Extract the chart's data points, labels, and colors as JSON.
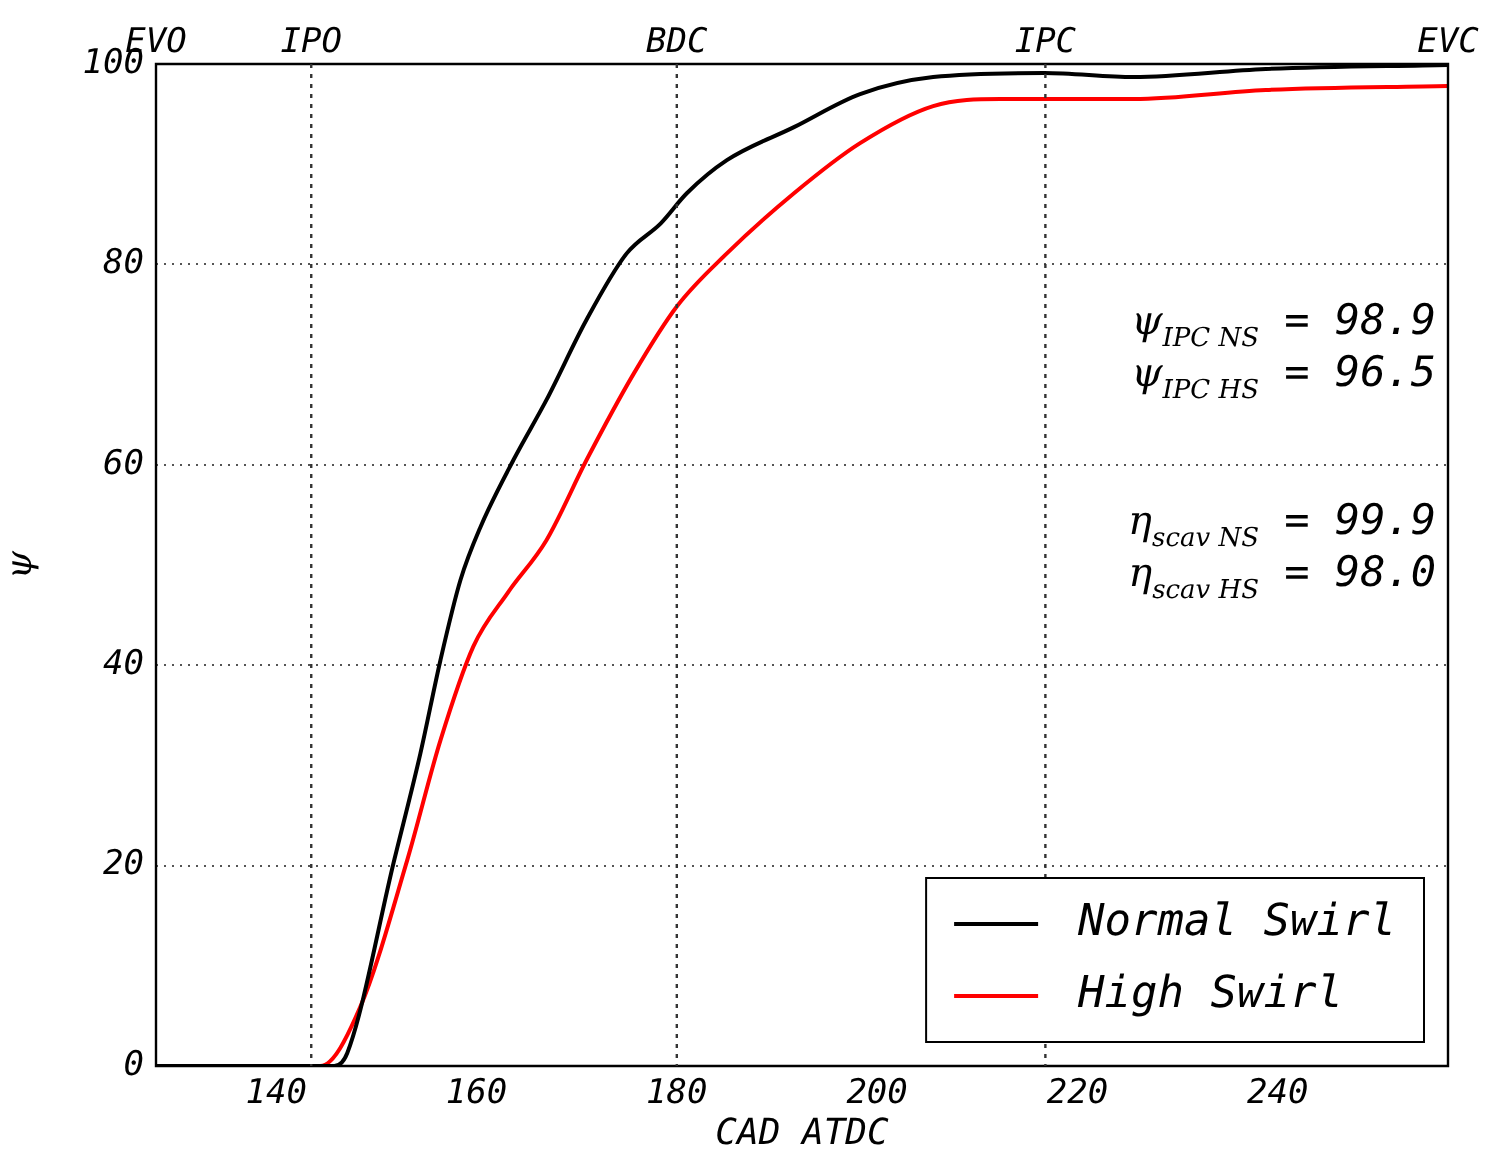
{
  "chart_data": {
    "type": "line",
    "xlabel": "CAD ATDC",
    "ylabel": "ψ",
    "xlim": [
      128,
      257
    ],
    "xticks": [
      140,
      160,
      180,
      200,
      220,
      240
    ],
    "ref_lines": [
      {
        "axis": "x",
        "value": 143.5,
        "label": "IPO",
        "line_style": "dotted"
      },
      {
        "axis": "x",
        "value": 180,
        "label": "BDC",
        "line_style": "dotted"
      },
      {
        "axis": "x",
        "value": 216.8,
        "label": "IPC",
        "line_style": "dotted"
      }
    ],
    "ylim": [
      0,
      100
    ],
    "yticks": [
      0,
      20,
      40,
      60,
      80,
      100
    ],
    "grid": "y",
    "legend": "bottom right",
    "line_style": "solid",
    "marker": "none",
    "annotations": [
      "EVO",
      "EVC",
      "ψ$_{IPC NS}$ = 98.9",
      "ψ$_{IPC HS}$ = 96.5",
      "η$_{scav NS}$ = 99.9",
      "η$_{scav HS}$ = 98.0"
    ],
    "series": [
      {
        "name": "Normal Swirl",
        "color": "#000000",
        "x": [
          128,
          140,
          145.8,
          147.1,
          151.8,
          154.4,
          156.4,
          158.4,
          160.4,
          163.7,
          167.0,
          171.0,
          175.0,
          178.4,
          181.0,
          185.0,
          191.7,
          198.3,
          205.6,
          216.7,
          225.6,
          238.8,
          257
        ],
        "values": [
          0,
          0,
          0,
          1.3,
          20.6,
          31.2,
          40.5,
          48.5,
          53.8,
          60.5,
          66.5,
          74.5,
          81.1,
          84.1,
          87.1,
          90.4,
          93.7,
          97.0,
          98.7,
          99.1,
          98.7,
          99.5,
          99.9
        ]
      },
      {
        "name": "High Swirl",
        "color": "#ff0000",
        "x": [
          128,
          140,
          144.4,
          148.4,
          153.1,
          156.4,
          159.7,
          163.1,
          167.0,
          171.0,
          175.7,
          180.0,
          185.0,
          191.7,
          198.3,
          205.6,
          212.3,
          225.6,
          238.8,
          257
        ],
        "values": [
          0,
          0,
          0,
          5.9,
          20.6,
          32.5,
          41.9,
          47.2,
          52.5,
          60.5,
          69.1,
          75.8,
          81.1,
          87.1,
          92.1,
          95.8,
          96.5,
          96.5,
          97.4,
          97.8
        ]
      }
    ]
  }
}
